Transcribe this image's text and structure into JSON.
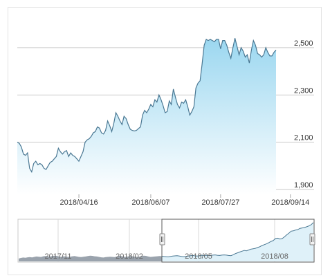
{
  "chart_data": {
    "type": "area",
    "main": {
      "y_ticks": [
        1900,
        2100,
        2300,
        2500
      ],
      "y_tick_labels": [
        "1,900",
        "2,100",
        "2,300",
        "2,500"
      ],
      "ylim": [
        1880,
        2640
      ],
      "x_tick_labels": [
        "2018/04/16",
        "2018/06/07",
        "2018/07/27",
        "2018/09/14"
      ],
      "x_tick_positions": [
        30,
        65,
        99,
        133
      ],
      "xlim": [
        0,
        126
      ],
      "values": [
        2100,
        2095,
        2080,
        2050,
        2045,
        2055,
        1990,
        1975,
        2010,
        2020,
        2005,
        2010,
        2005,
        1990,
        1985,
        2000,
        2015,
        2020,
        2030,
        2040,
        2075,
        2060,
        2050,
        2060,
        2065,
        2040,
        2055,
        2045,
        2040,
        2030,
        2020,
        2040,
        2060,
        2100,
        2110,
        2115,
        2125,
        2140,
        2145,
        2165,
        2160,
        2140,
        2135,
        2150,
        2190,
        2170,
        2145,
        2180,
        2225,
        2210,
        2190,
        2175,
        2210,
        2200,
        2175,
        2155,
        2150,
        2148,
        2150,
        2158,
        2165,
        2215,
        2235,
        2225,
        2240,
        2260,
        2250,
        2280,
        2270,
        2300,
        2280,
        2255,
        2225,
        2230,
        2275,
        2260,
        2325,
        2290,
        2260,
        2245,
        2270,
        2265,
        2280,
        2250,
        2215,
        2230,
        2250,
        2330,
        2350,
        2360,
        2430,
        2510,
        2535,
        2530,
        2535,
        2530,
        2525,
        2535,
        2535,
        2495,
        2530,
        2530,
        2510,
        2480,
        2455,
        2500,
        2540,
        2505,
        2470,
        2500,
        2485,
        2460,
        2470,
        2435,
        2490,
        2530,
        2510,
        2475,
        2470,
        2460,
        2470,
        2500,
        2480,
        2465,
        2465,
        2480,
        2490
      ]
    },
    "navigator": {
      "x_tick_labels": [
        "2017/11",
        "2018/02",
        "2018/05",
        "2018/08"
      ],
      "values": [
        1720,
        1735,
        1745,
        1740,
        1750,
        1755,
        1748,
        1760,
        1770,
        1765,
        1758,
        1775,
        1780,
        1772,
        1768,
        1780,
        1790,
        1785,
        1770,
        1760,
        1775,
        1770,
        1760,
        1765,
        1775,
        1780,
        1770,
        1760,
        1755,
        1765,
        1770,
        1780,
        1790,
        1785,
        1775,
        1770,
        1760,
        1750,
        1745,
        1755,
        1760,
        1765,
        1760,
        1755,
        1770,
        1785,
        1780,
        1765,
        1760,
        1770,
        1780,
        1775,
        1768,
        1760,
        1765,
        1780,
        1790,
        1785,
        1770,
        1760,
        1765,
        1770,
        1775,
        1780,
        1778,
        1770,
        1765,
        1760,
        1770,
        1780,
        1785,
        1790,
        1780,
        1770,
        1765,
        1775,
        1780,
        1790,
        1795,
        1785,
        1780,
        1790,
        1800,
        1795,
        1800,
        1790,
        1795,
        1805,
        1810,
        1800,
        1795,
        1805,
        1810,
        1805,
        1795,
        1790,
        1810,
        1840,
        1860,
        1880,
        1900,
        1920,
        1910,
        1930,
        1950,
        1960,
        1970,
        1990,
        2010,
        2040,
        2060,
        2080,
        2110,
        2140,
        2160,
        2210,
        2220,
        2200,
        2210,
        2250,
        2300,
        2340,
        2390,
        2400,
        2420,
        2430,
        2460,
        2470,
        2480,
        2500,
        2520,
        2550,
        2600
      ]
    }
  }
}
